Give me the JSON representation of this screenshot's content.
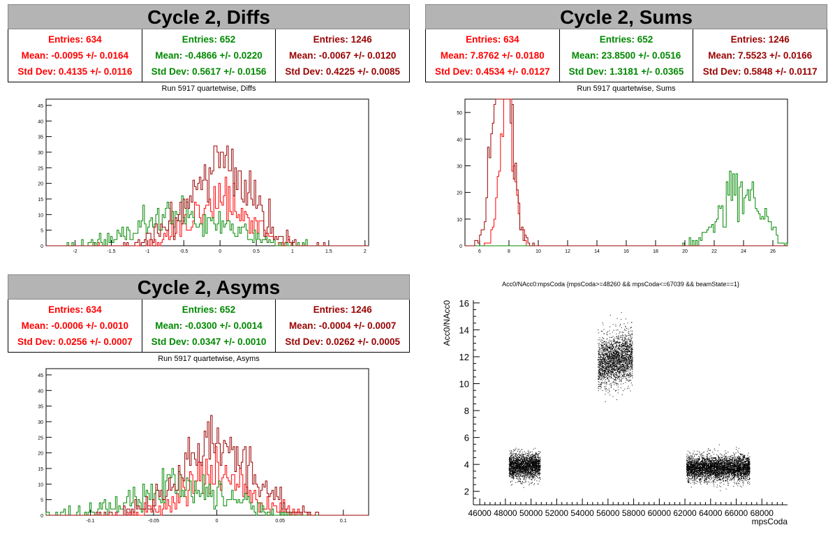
{
  "colors": {
    "red": "#ff0000",
    "green": "#008800",
    "darkred": "#990000",
    "black": "#000000"
  },
  "panels": [
    {
      "title": "Cycle 2, Diffs",
      "subtitle": "Run 5917 quartetwise, Diffs",
      "stats": [
        {
          "entries": "Entries: 634",
          "mean": "Mean: -0.0095 +/- 0.0164",
          "std": "Std Dev: 0.4135 +/- 0.0116"
        },
        {
          "entries": "Entries: 652",
          "mean": "Mean: -0.4866 +/- 0.0220",
          "std": "Std Dev: 0.5617 +/- 0.0156"
        },
        {
          "entries": "Entries: 1246",
          "mean": "Mean: -0.0067 +/- 0.0120",
          "std": "Std Dev: 0.4225 +/- 0.0085"
        }
      ]
    },
    {
      "title": "Cycle 2, Sums",
      "subtitle": "Run 5917 quartetwise, Sums",
      "stats": [
        {
          "entries": "Entries: 634",
          "mean": "Mean: 7.8762 +/- 0.0180",
          "std": "Std Dev: 0.4534 +/- 0.0127"
        },
        {
          "entries": "Entries: 652",
          "mean": "Mean: 23.8500 +/- 0.0516",
          "std": "Std Dev: 1.3181 +/- 0.0365"
        },
        {
          "entries": "Entries: 1246",
          "mean": "Mean: 7.5523 +/- 0.0166",
          "std": "Std Dev: 0.5848 +/- 0.0117"
        }
      ]
    },
    {
      "title": "Cycle 2, Asyms",
      "subtitle": "Run 5917 quartetwise, Asyms",
      "stats": [
        {
          "entries": "Entries: 634",
          "mean": "Mean: -0.0006 +/- 0.0010",
          "std": "Std Dev: 0.0256 +/- 0.0007"
        },
        {
          "entries": "Entries: 652",
          "mean": "Mean: -0.0300 +/- 0.0014",
          "std": "Std Dev: 0.0347 +/- 0.0010"
        },
        {
          "entries": "Entries: 1246",
          "mean": "Mean: -0.0004 +/- 0.0007",
          "std": "Std Dev: 0.0262 +/- 0.0005"
        }
      ]
    }
  ],
  "chart_data": [
    {
      "type": "histogram",
      "xlim": [
        -2.4,
        2.05
      ],
      "ylim": [
        0,
        47
      ],
      "xticks": [
        "-2",
        "-1.5",
        "-1",
        "-0.5",
        "0",
        "0.5",
        "1",
        "1.5",
        "2"
      ],
      "xtick_values": [
        -2,
        -1.5,
        -1,
        -0.5,
        0,
        0.5,
        1,
        1.5,
        2
      ],
      "yticks": [
        "0",
        "5",
        "10",
        "15",
        "20",
        "25",
        "30",
        "35",
        "40",
        "45"
      ],
      "series": [
        {
          "color": "red",
          "mean": -0.0095,
          "std": 0.4135,
          "entries": 634
        },
        {
          "color": "green",
          "mean": -0.4866,
          "std": 0.5617,
          "entries": 652
        },
        {
          "color": "darkred",
          "mean": -0.0067,
          "std": 0.4225,
          "entries": 1246
        }
      ]
    },
    {
      "type": "histogram",
      "xlim": [
        5,
        27
      ],
      "ylim": [
        0,
        55
      ],
      "xticks": [
        "6",
        "8",
        "10",
        "12",
        "14",
        "16",
        "18",
        "20",
        "22",
        "24",
        "26"
      ],
      "xtick_values": [
        6,
        8,
        10,
        12,
        14,
        16,
        18,
        20,
        22,
        24,
        26
      ],
      "yticks": [
        "0",
        "10",
        "20",
        "30",
        "40",
        "50"
      ],
      "series": [
        {
          "color": "red",
          "mean": 7.8762,
          "std": 0.4534,
          "entries": 634
        },
        {
          "color": "green",
          "mean": 23.85,
          "std": 1.3181,
          "entries": 652
        },
        {
          "color": "darkred",
          "mean": 7.5523,
          "std": 0.5848,
          "entries": 1246
        }
      ]
    },
    {
      "type": "histogram",
      "xlim": [
        -0.135,
        0.12
      ],
      "ylim": [
        0,
        47
      ],
      "xticks": [
        "-0.1",
        "-0.05",
        "0",
        "0.05",
        "0.1"
      ],
      "xtick_values": [
        -0.1,
        -0.05,
        0,
        0.05,
        0.1
      ],
      "yticks": [
        "0",
        "5",
        "10",
        "15",
        "20",
        "25",
        "30",
        "35",
        "40",
        "45"
      ],
      "series": [
        {
          "color": "red",
          "mean": -0.0006,
          "std": 0.0256,
          "entries": 634
        },
        {
          "color": "green",
          "mean": -0.03,
          "std": 0.0347,
          "entries": 652
        },
        {
          "color": "darkred",
          "mean": -0.0004,
          "std": 0.0262,
          "entries": 1246
        }
      ]
    },
    {
      "type": "scatter",
      "title": "Acc0/NAcc0:mpsCoda {mpsCoda>=48260 && mpsCoda<=67039 && beamState==1}",
      "xlabel": "mpsCoda",
      "ylabel": "Acc0/NAcc0",
      "xlim": [
        45500,
        70000
      ],
      "ylim": [
        1,
        16.2
      ],
      "xticks": [
        "46000",
        "48000",
        "50000",
        "52000",
        "54000",
        "56000",
        "58000",
        "60000",
        "62000",
        "64000",
        "66000",
        "68000"
      ],
      "xtick_values": [
        46000,
        48000,
        50000,
        52000,
        54000,
        56000,
        58000,
        60000,
        62000,
        64000,
        66000,
        68000
      ],
      "yticks": [
        "2",
        "4",
        "6",
        "8",
        "10",
        "12",
        "14",
        "16"
      ],
      "ytick_values": [
        2,
        4,
        6,
        8,
        10,
        12,
        14,
        16
      ],
      "clusters": [
        {
          "x": [
            48260,
            50700
          ],
          "y_mean": 3.9,
          "y_std": 0.45
        },
        {
          "x": [
            55200,
            57900
          ],
          "y_mean": 11.8,
          "y_std": 0.9
        },
        {
          "x": [
            62100,
            67039
          ],
          "y_mean": 3.75,
          "y_std": 0.45
        }
      ]
    }
  ]
}
